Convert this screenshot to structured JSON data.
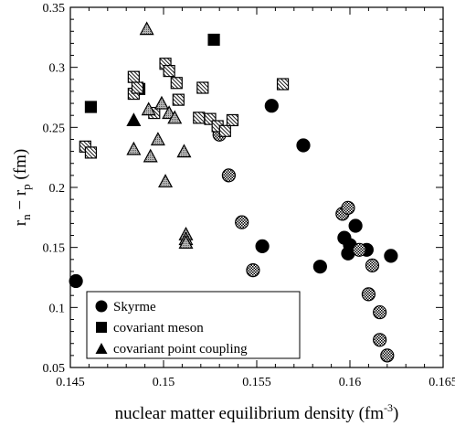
{
  "chart_data": {
    "type": "scatter",
    "xlabel": "nuclear matter equilibrium density (fm",
    "xlabel_exponent": "-3",
    "xlabel_close": ")",
    "ylabel_main": "r",
    "ylabel_sub1": "n",
    "ylabel_minus": " − r",
    "ylabel_sub2": "p",
    "ylabel_unit": " (fm)",
    "xlim": [
      0.145,
      0.165
    ],
    "ylim": [
      0.05,
      0.35
    ],
    "xticks": [
      0.145,
      0.15,
      0.155,
      0.16,
      0.165
    ],
    "xtick_labels": [
      "0.145",
      "0.15",
      "0.155",
      "0.16",
      "0.165"
    ],
    "yticks": [
      0.05,
      0.1,
      0.15,
      0.2,
      0.25,
      0.3,
      0.35
    ],
    "ytick_labels": [
      "0.05",
      "0.1",
      "0.15",
      "0.2",
      "0.25",
      "0.3",
      "0.35"
    ],
    "legend_position": "bottom-left",
    "legend": [
      {
        "marker": "circle",
        "label": "Skyrme"
      },
      {
        "marker": "square",
        "label": "covariant meson"
      },
      {
        "marker": "triangle",
        "label": "covariant point coupling"
      }
    ],
    "series": [
      {
        "marker": "circle",
        "fill": "solid",
        "color": "#000000",
        "points": [
          [
            0.1453,
            0.122
          ],
          [
            0.1558,
            0.268
          ],
          [
            0.1575,
            0.235
          ],
          [
            0.1553,
            0.151
          ],
          [
            0.1584,
            0.134
          ],
          [
            0.1597,
            0.158
          ],
          [
            0.1599,
            0.145
          ],
          [
            0.16,
            0.152
          ],
          [
            0.1603,
            0.168
          ],
          [
            0.1609,
            0.148
          ],
          [
            0.1622,
            0.143
          ]
        ]
      },
      {
        "marker": "circle",
        "fill": "checker",
        "color": "#000000",
        "points": [
          [
            0.153,
            0.244
          ],
          [
            0.1535,
            0.21
          ],
          [
            0.1542,
            0.171
          ],
          [
            0.1548,
            0.131
          ],
          [
            0.1596,
            0.178
          ],
          [
            0.1599,
            0.183
          ],
          [
            0.1605,
            0.148
          ],
          [
            0.161,
            0.111
          ],
          [
            0.1612,
            0.135
          ],
          [
            0.1616,
            0.096
          ],
          [
            0.1616,
            0.073
          ],
          [
            0.162,
            0.06
          ]
        ]
      },
      {
        "marker": "square",
        "fill": "solid",
        "color": "#000000",
        "points": [
          [
            0.1461,
            0.267
          ],
          [
            0.1487,
            0.282
          ],
          [
            0.1527,
            0.323
          ]
        ]
      },
      {
        "marker": "square",
        "fill": "hatched",
        "color": "#000000",
        "points": [
          [
            0.1458,
            0.234
          ],
          [
            0.1461,
            0.229
          ],
          [
            0.1484,
            0.292
          ],
          [
            0.1484,
            0.278
          ],
          [
            0.1486,
            0.283
          ],
          [
            0.1495,
            0.262
          ],
          [
            0.1501,
            0.303
          ],
          [
            0.1503,
            0.297
          ],
          [
            0.1507,
            0.287
          ],
          [
            0.1508,
            0.273
          ],
          [
            0.1519,
            0.258
          ],
          [
            0.1521,
            0.283
          ],
          [
            0.1525,
            0.257
          ],
          [
            0.1529,
            0.251
          ],
          [
            0.1533,
            0.247
          ],
          [
            0.1537,
            0.256
          ],
          [
            0.1564,
            0.286
          ]
        ]
      },
      {
        "marker": "triangle",
        "fill": "solid",
        "color": "#000000",
        "points": [
          [
            0.1484,
            0.256
          ]
        ]
      },
      {
        "marker": "triangle",
        "fill": "gray-dotted",
        "color": "#000000",
        "points": [
          [
            0.1484,
            0.232
          ],
          [
            0.1491,
            0.332
          ],
          [
            0.1492,
            0.265
          ],
          [
            0.1493,
            0.226
          ],
          [
            0.1497,
            0.24
          ],
          [
            0.1499,
            0.27
          ],
          [
            0.1501,
            0.205
          ],
          [
            0.1503,
            0.262
          ],
          [
            0.1506,
            0.258
          ],
          [
            0.1511,
            0.23
          ],
          [
            0.1512,
            0.161
          ],
          [
            0.1512,
            0.157
          ],
          [
            0.1512,
            0.154
          ]
        ]
      }
    ]
  }
}
